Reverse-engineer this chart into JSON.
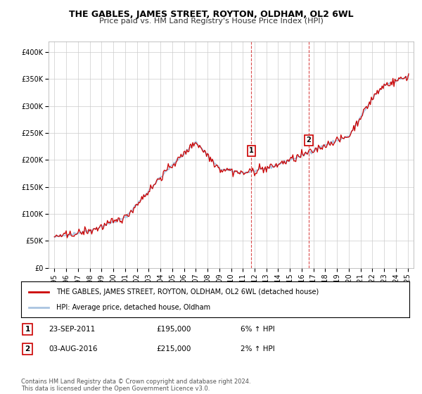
{
  "title": "THE GABLES, JAMES STREET, ROYTON, OLDHAM, OL2 6WL",
  "subtitle": "Price paid vs. HM Land Registry's House Price Index (HPI)",
  "legend_line1": "THE GABLES, JAMES STREET, ROYTON, OLDHAM, OL2 6WL (detached house)",
  "legend_line2": "HPI: Average price, detached house, Oldham",
  "sale1_label": "1",
  "sale1_date": "23-SEP-2011",
  "sale1_price": "£195,000",
  "sale1_hpi": "6% ↑ HPI",
  "sale1_year": 2011.73,
  "sale1_value": 195000,
  "sale2_label": "2",
  "sale2_date": "03-AUG-2016",
  "sale2_price": "£215,000",
  "sale2_hpi": "2% ↑ HPI",
  "sale2_year": 2016.59,
  "sale2_value": 215000,
  "footer": "Contains HM Land Registry data © Crown copyright and database right 2024.\nThis data is licensed under the Open Government Licence v3.0.",
  "hpi_color": "#aac4e0",
  "sale_color": "#cc0000",
  "vline_color": "#cc0000",
  "background_color": "#ffffff",
  "plot_bg_color": "#ffffff",
  "grid_color": "#cccccc",
  "ylim": [
    0,
    420000
  ],
  "xlim_start": 1994.5,
  "xlim_end": 2025.5,
  "yticks": [
    0,
    50000,
    100000,
    150000,
    200000,
    250000,
    300000,
    350000,
    400000
  ],
  "ytick_labels": [
    "£0",
    "£50K",
    "£100K",
    "£150K",
    "£200K",
    "£250K",
    "£300K",
    "£350K",
    "£400K"
  ],
  "xticks": [
    1995,
    1996,
    1997,
    1998,
    1999,
    2000,
    2001,
    2002,
    2003,
    2004,
    2005,
    2006,
    2007,
    2008,
    2009,
    2010,
    2011,
    2012,
    2013,
    2014,
    2015,
    2016,
    2017,
    2018,
    2019,
    2020,
    2021,
    2022,
    2023,
    2024,
    2025
  ],
  "title_fontsize": 9,
  "subtitle_fontsize": 8,
  "tick_fontsize": 7,
  "legend_fontsize": 7,
  "footer_fontsize": 6
}
